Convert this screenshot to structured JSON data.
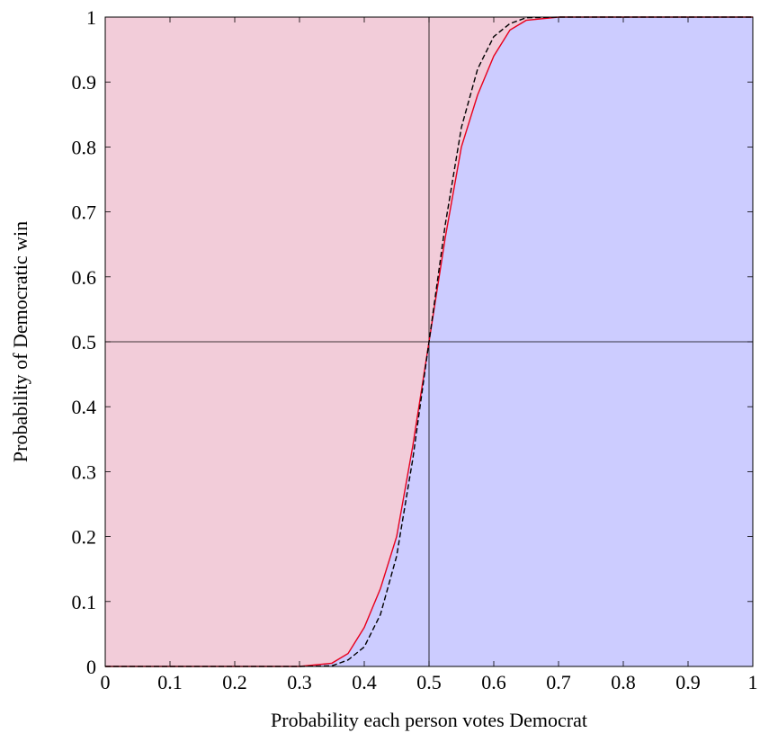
{
  "chart_data": {
    "type": "line",
    "xlabel": "Probability each person votes Democrat",
    "ylabel": "Probability of Democratic win",
    "x": [
      0,
      0.3,
      0.35,
      0.375,
      0.4,
      0.425,
      0.45,
      0.475,
      0.5,
      0.525,
      0.55,
      0.575,
      0.6,
      0.625,
      0.65,
      0.7,
      1
    ],
    "series": [
      {
        "color": "#e8001c",
        "dash": false,
        "fill_below": "#ccccff",
        "fill_above": "#f2ccd9",
        "values": [
          0,
          0,
          0.005,
          0.02,
          0.06,
          0.12,
          0.2,
          0.34,
          0.5,
          0.66,
          0.8,
          0.88,
          0.94,
          0.98,
          0.995,
          1,
          1
        ]
      },
      {
        "color": "#000000",
        "dash": true,
        "values": [
          0,
          0,
          0.001,
          0.01,
          0.03,
          0.08,
          0.17,
          0.32,
          0.5,
          0.68,
          0.83,
          0.92,
          0.97,
          0.99,
          0.999,
          1,
          1
        ]
      }
    ],
    "hlines": [
      0.5
    ],
    "vlines": [
      0.5
    ],
    "xlim": [
      0,
      1
    ],
    "ylim": [
      0,
      1
    ],
    "xticks": [
      0,
      0.1,
      0.2,
      0.3,
      0.4,
      0.5,
      0.6,
      0.7,
      0.8,
      0.9,
      1
    ],
    "yticks": [
      0,
      0.1,
      0.2,
      0.3,
      0.4,
      0.5,
      0.6,
      0.7,
      0.8,
      0.9,
      1
    ]
  }
}
